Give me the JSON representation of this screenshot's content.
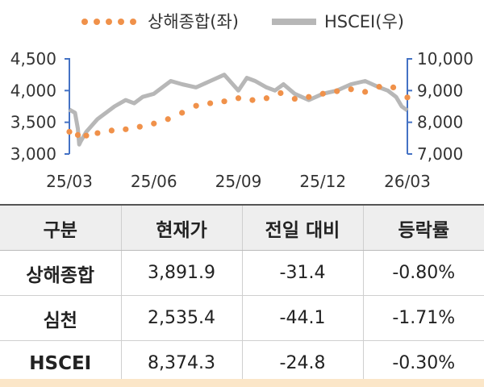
{
  "chart_data": {
    "type": "line",
    "legend": {
      "series1": "상해종합(좌)",
      "series2": "HSCEI(우)",
      "placement": "top"
    },
    "colors": {
      "series1": "#f0914a",
      "series2": "#b7b7b7",
      "axis": "#4472c4"
    },
    "x_ticks": [
      "25/03",
      "25/06",
      "25/09",
      "25/12",
      "26/03"
    ],
    "y_left": {
      "ticks": [
        "3,000",
        "3,500",
        "4,000",
        "4,500"
      ],
      "ylim": [
        3000,
        4500
      ]
    },
    "y_right": {
      "ticks": [
        "7,000",
        "8,000",
        "9,000",
        "10,000"
      ],
      "ylim": [
        7000,
        10000
      ]
    },
    "x_range": [
      0,
      12
    ],
    "series": [
      {
        "name": "상해종합(좌)",
        "axis": "left",
        "style": "dotted",
        "x": [
          0,
          0.3,
          0.6,
          1.0,
          1.5,
          2.0,
          2.5,
          3.0,
          3.5,
          4.0,
          4.5,
          5.0,
          5.5,
          6.0,
          6.5,
          7.0,
          7.5,
          8.0,
          8.5,
          9.0,
          9.5,
          10.0,
          10.5,
          11.0,
          11.5,
          12.0
        ],
        "y": [
          3350,
          3300,
          3290,
          3330,
          3370,
          3390,
          3430,
          3480,
          3550,
          3650,
          3760,
          3800,
          3830,
          3880,
          3850,
          3880,
          3960,
          3870,
          3900,
          3950,
          3990,
          4020,
          3980,
          4060,
          4050,
          3892
        ]
      },
      {
        "name": "HSCEI(우)",
        "axis": "right",
        "style": "solid",
        "x": [
          0,
          0.1,
          0.2,
          0.3,
          0.35,
          0.4,
          0.6,
          0.8,
          1.0,
          1.3,
          1.6,
          2.0,
          2.3,
          2.6,
          3.0,
          3.3,
          3.6,
          4.0,
          4.5,
          5.0,
          5.5,
          5.8,
          6.0,
          6.3,
          6.6,
          7.0,
          7.3,
          7.6,
          8.0,
          8.5,
          9.0,
          9.5,
          10.0,
          10.5,
          11.0,
          11.3,
          11.6,
          11.8,
          12.0
        ],
        "y": [
          8400,
          8350,
          8300,
          7800,
          7300,
          7400,
          7700,
          7900,
          8100,
          8300,
          8500,
          8700,
          8600,
          8800,
          8900,
          9100,
          9300,
          9200,
          9100,
          9300,
          9500,
          9200,
          9000,
          9400,
          9300,
          9100,
          9000,
          9200,
          8900,
          8700,
          8900,
          9000,
          9200,
          9300,
          9100,
          9000,
          8800,
          8500,
          8374
        ]
      }
    ]
  },
  "table": {
    "headers": [
      "구분",
      "현재가",
      "전일 대비",
      "등락률"
    ],
    "rows": [
      [
        "상해종합",
        "3,891.9",
        "-31.4",
        "-0.80%"
      ],
      [
        "심천",
        "2,535.4",
        "-44.1",
        "-1.71%"
      ],
      [
        "HSCEI",
        "8,374.3",
        "-24.8",
        "-0.30%"
      ]
    ]
  }
}
